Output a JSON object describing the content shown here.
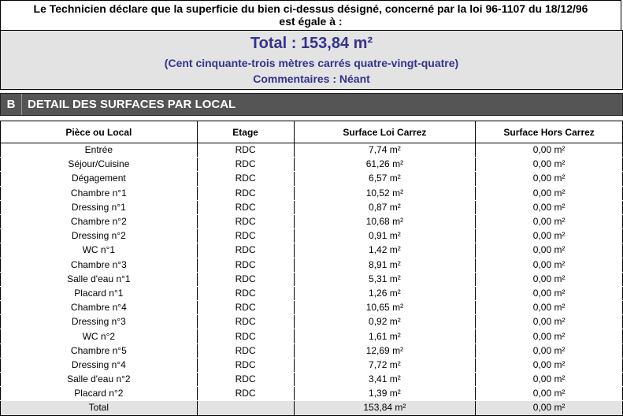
{
  "declaration": {
    "line1": "Le Technicien déclare que la superficie du bien ci-dessus désigné, concerné par la loi 96-1107 du 18/12/96",
    "line2": "est égale à :"
  },
  "summary": {
    "total": "Total : 153,84 m²",
    "in_words": "(Cent cinquante-trois mètres carrés quatre-vingt-quatre)",
    "comments": "Commentaires : Néant",
    "color": "#33338f"
  },
  "section": {
    "letter": "B",
    "title": "DETAIL DES SURFACES PAR LOCAL"
  },
  "table": {
    "headers": [
      "Pièce ou Local",
      "Etage",
      "Surface Loi Carrez",
      "Surface Hors Carrez"
    ],
    "rows": [
      [
        "Entrée",
        "RDC",
        "7,74 m²",
        "0,00 m²"
      ],
      [
        "Séjour/Cuisine",
        "RDC",
        "61,26 m²",
        "0,00 m²"
      ],
      [
        "Dégagement",
        "RDC",
        "6,57 m²",
        "0,00 m²"
      ],
      [
        "Chambre n°1",
        "RDC",
        "10,52 m²",
        "0,00 m²"
      ],
      [
        "Dressing n°1",
        "RDC",
        "0,87 m²",
        "0,00 m²"
      ],
      [
        "Chambre n°2",
        "RDC",
        "10,68 m²",
        "0,00 m²"
      ],
      [
        "Dressing n°2",
        "RDC",
        "0,91 m²",
        "0,00 m²"
      ],
      [
        "WC n°1",
        "RDC",
        "1,42 m²",
        "0,00 m²"
      ],
      [
        "Chambre n°3",
        "RDC",
        "8,91 m²",
        "0,00 m²"
      ],
      [
        "Salle d'eau n°1",
        "RDC",
        "5,31 m²",
        "0,00 m²"
      ],
      [
        "Placard n°1",
        "RDC",
        "1,26 m²",
        "0,00 m²"
      ],
      [
        "Chambre n°4",
        "RDC",
        "10,65 m²",
        "0,00 m²"
      ],
      [
        "Dressing n°3",
        "RDC",
        "0,92 m²",
        "0,00 m²"
      ],
      [
        "WC n°2",
        "RDC",
        "1,61 m²",
        "0,00 m²"
      ],
      [
        "Chambre n°5",
        "RDC",
        "12,69 m²",
        "0,00 m²"
      ],
      [
        "Dressing n°4",
        "RDC",
        "7,72 m²",
        "0,00 m²"
      ],
      [
        "Salle d'eau n°2",
        "RDC",
        "3,41 m²",
        "0,00 m²"
      ],
      [
        "Placard n°2",
        "RDC",
        "1,39 m²",
        "0,00 m²"
      ]
    ],
    "total_row": [
      "Total",
      "",
      "153,84 m²",
      "0,00 m²"
    ]
  }
}
